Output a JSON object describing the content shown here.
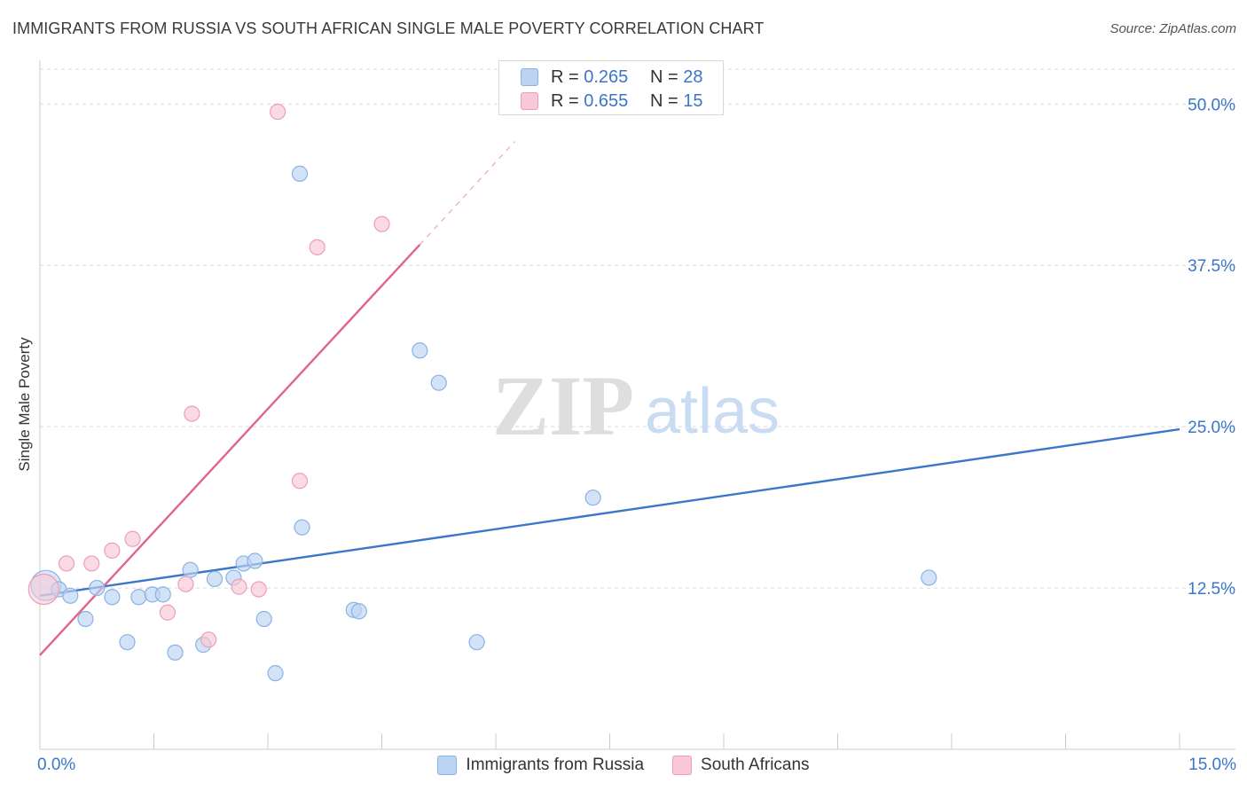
{
  "title": "IMMIGRANTS FROM RUSSIA VS SOUTH AFRICAN SINGLE MALE POVERTY CORRELATION CHART",
  "source": "Source: ZipAtlas.com",
  "watermark": {
    "zip": "ZIP",
    "atlas": "atlas"
  },
  "colors": {
    "blue": "#3a76c9",
    "blue_fill": "#bcd4f3",
    "blue_stroke": "#8ab2e3",
    "pink": "#e0658c",
    "pink_fill": "#f8c8d6",
    "pink_stroke": "#ee9db6",
    "grid": "#d9d9d9"
  },
  "legend": {
    "blue": {
      "r_label": "R =",
      "r_value": "0.265",
      "n_label": "N =",
      "n_value": "28"
    },
    "pink": {
      "r_label": "R =",
      "r_value": "0.655",
      "n_label": "N =",
      "n_value": "15"
    }
  },
  "chart_data": {
    "type": "scatter",
    "title": "IMMIGRANTS FROM RUSSIA VS SOUTH AFRICAN SINGLE MALE POVERTY CORRELATION CHART",
    "xlabel": "",
    "ylabel": "Single Male Poverty",
    "xlim": [
      0,
      15
    ],
    "ylim": [
      0,
      52.7
    ],
    "x_tick_labels": [
      "0.0%",
      "15.0%"
    ],
    "y_ticks": [
      12.5,
      25.0,
      37.5,
      50.0
    ],
    "y_tick_labels": [
      "12.5%",
      "25.0%",
      "37.5%",
      "50.0%"
    ],
    "series": [
      {
        "name": "Immigrants from Russia",
        "color": "#3a76c9",
        "points": [
          {
            "x": 0.08,
            "y": 12.7,
            "big": true
          },
          {
            "x": 0.25,
            "y": 12.4
          },
          {
            "x": 0.4,
            "y": 11.9
          },
          {
            "x": 0.6,
            "y": 10.1
          },
          {
            "x": 0.75,
            "y": 12.5
          },
          {
            "x": 0.95,
            "y": 11.8
          },
          {
            "x": 1.15,
            "y": 8.3
          },
          {
            "x": 1.3,
            "y": 11.8
          },
          {
            "x": 1.48,
            "y": 12.0
          },
          {
            "x": 1.62,
            "y": 12.0
          },
          {
            "x": 1.78,
            "y": 7.5
          },
          {
            "x": 1.98,
            "y": 13.9
          },
          {
            "x": 2.15,
            "y": 8.1
          },
          {
            "x": 2.3,
            "y": 13.2
          },
          {
            "x": 2.55,
            "y": 13.3
          },
          {
            "x": 2.68,
            "y": 14.4
          },
          {
            "x": 2.83,
            "y": 14.6
          },
          {
            "x": 2.95,
            "y": 10.1
          },
          {
            "x": 3.1,
            "y": 5.9
          },
          {
            "x": 3.42,
            "y": 44.6
          },
          {
            "x": 3.45,
            "y": 17.2
          },
          {
            "x": 4.13,
            "y": 10.8
          },
          {
            "x": 4.2,
            "y": 10.7
          },
          {
            "x": 5.0,
            "y": 30.9
          },
          {
            "x": 5.25,
            "y": 28.4
          },
          {
            "x": 5.75,
            "y": 8.3
          },
          {
            "x": 7.28,
            "y": 19.5
          },
          {
            "x": 11.7,
            "y": 13.3
          }
        ],
        "trend": {
          "x0": 0,
          "y0": 11.9,
          "x1": 15,
          "y1": 24.8
        }
      },
      {
        "name": "South Africans",
        "color": "#e0658c",
        "points": [
          {
            "x": 0.05,
            "y": 12.4,
            "big": true
          },
          {
            "x": 0.35,
            "y": 14.4
          },
          {
            "x": 0.68,
            "y": 14.4
          },
          {
            "x": 0.95,
            "y": 15.4
          },
          {
            "x": 1.22,
            "y": 16.3
          },
          {
            "x": 1.68,
            "y": 10.6
          },
          {
            "x": 1.92,
            "y": 12.8
          },
          {
            "x": 2.0,
            "y": 26.0
          },
          {
            "x": 2.22,
            "y": 8.5
          },
          {
            "x": 2.62,
            "y": 12.6
          },
          {
            "x": 2.88,
            "y": 12.4
          },
          {
            "x": 3.13,
            "y": 49.4
          },
          {
            "x": 3.42,
            "y": 20.8
          },
          {
            "x": 3.65,
            "y": 38.9
          },
          {
            "x": 4.5,
            "y": 40.7
          }
        ],
        "trend": {
          "x0": 0,
          "y0": 7.3,
          "x1": 5.0,
          "y1": 39.1
        },
        "trend_dashed": {
          "x0": 5.0,
          "y0": 39.1,
          "x1": 6.25,
          "y1": 47.1
        }
      }
    ]
  }
}
